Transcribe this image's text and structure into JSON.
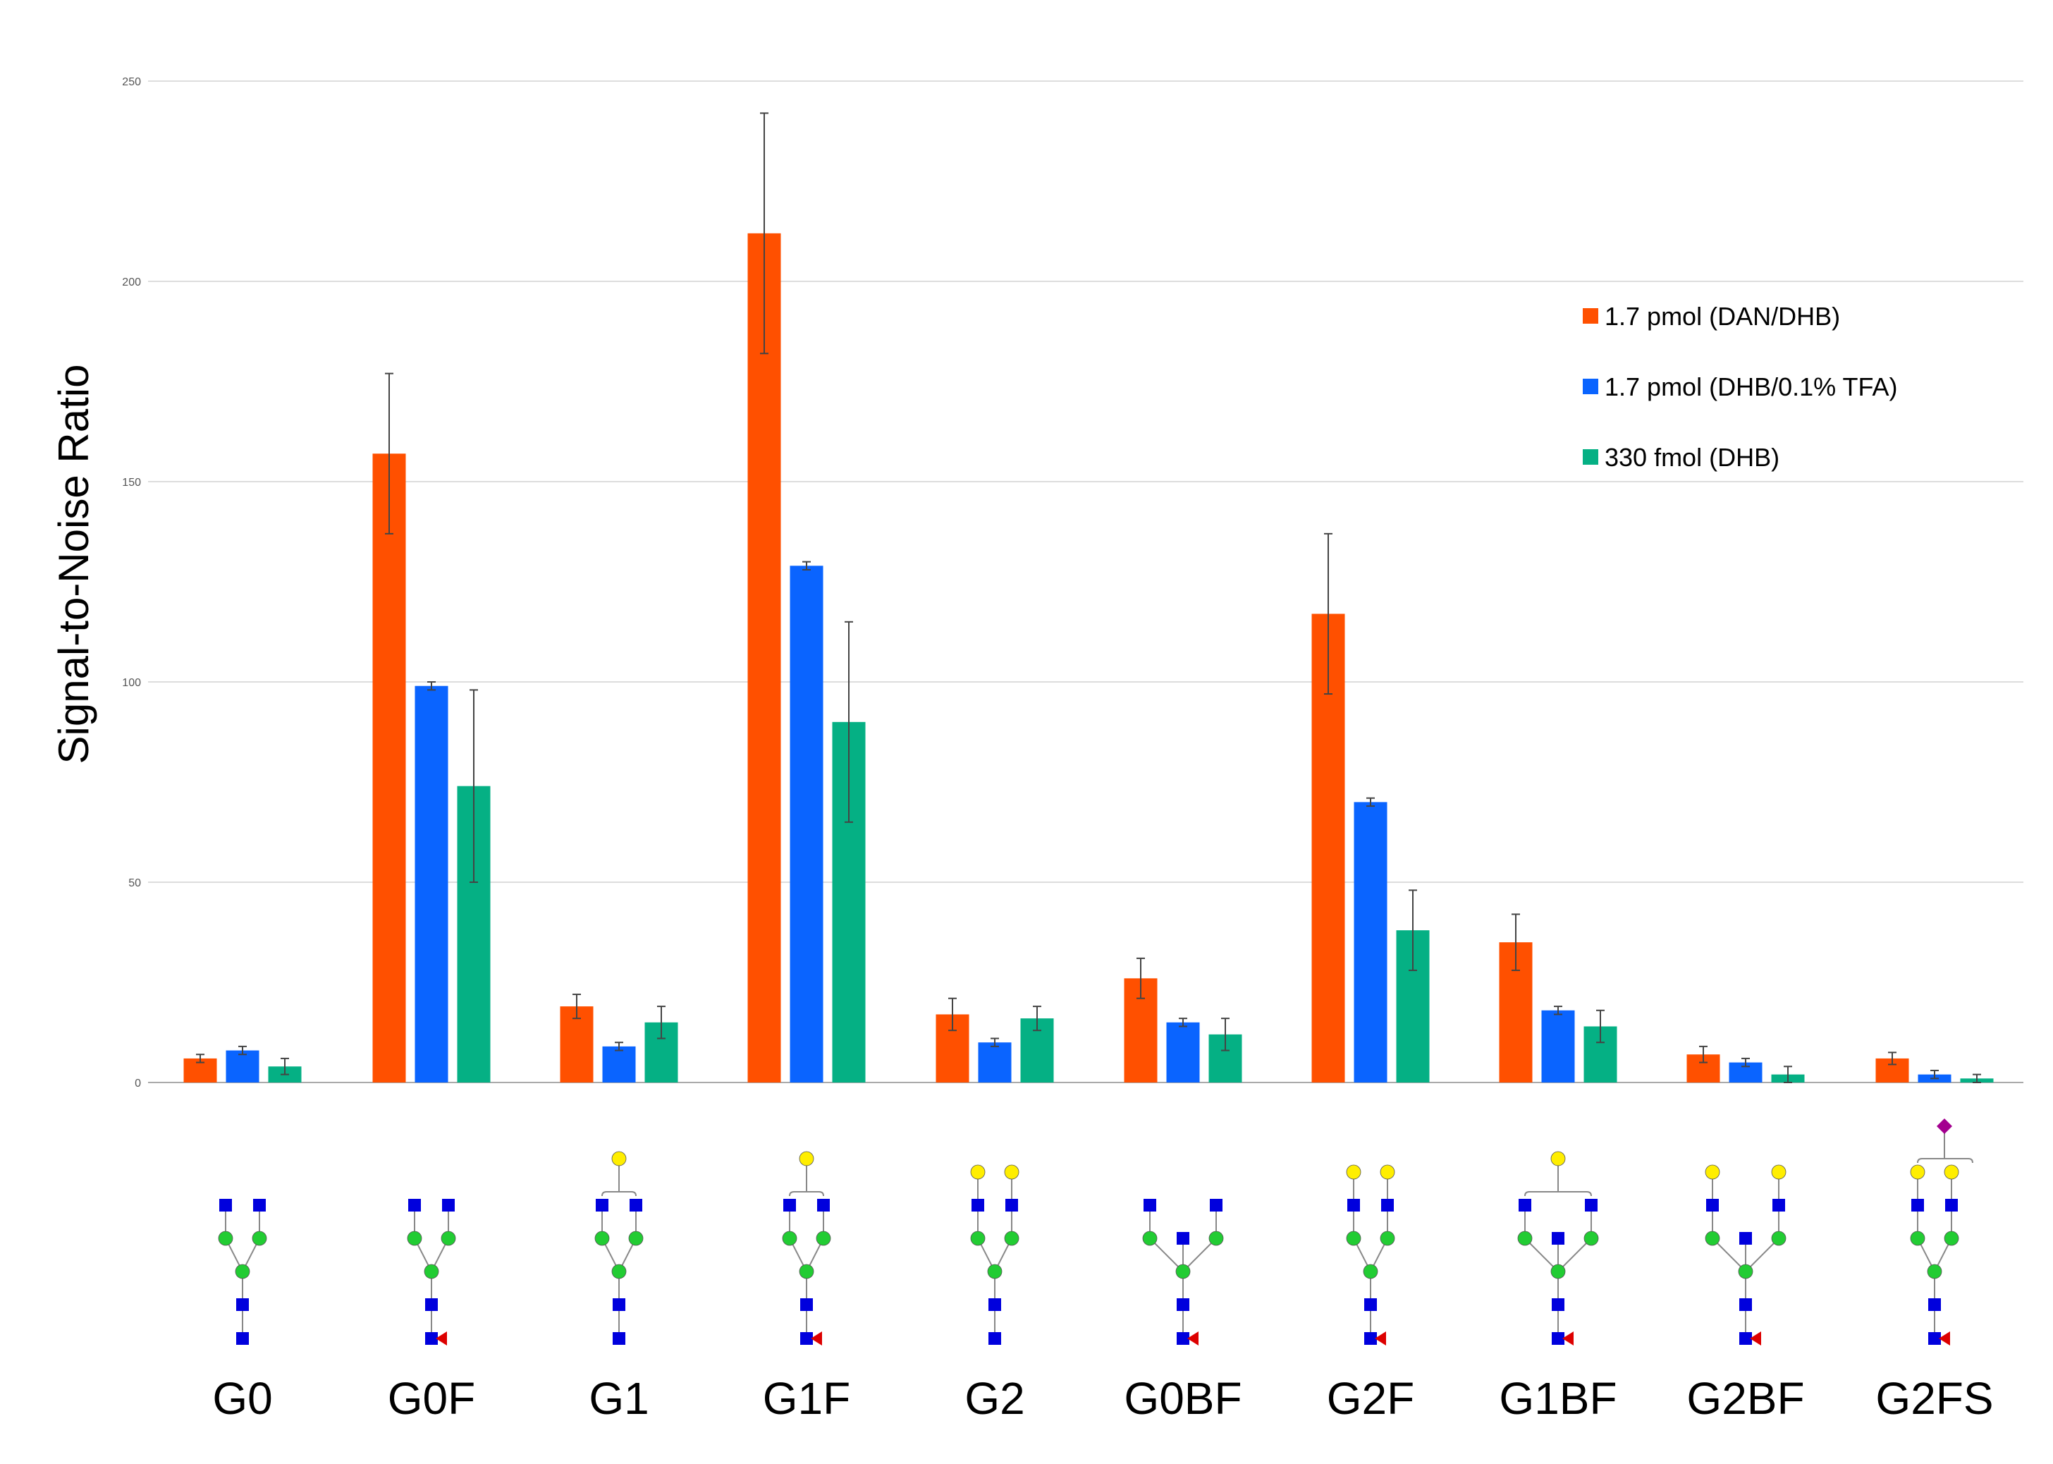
{
  "chart_data": {
    "type": "bar",
    "title": "",
    "xlabel": "",
    "ylabel": "Signal-to-Noise Ratio",
    "ylim": [
      0,
      250
    ],
    "yticks": [
      0,
      50,
      100,
      150,
      200,
      250
    ],
    "grid": true,
    "legend_position": "top-right",
    "categories": [
      "G0",
      "G0F",
      "G1",
      "G1F",
      "G2",
      "G0BF",
      "G2F",
      "G1BF",
      "G2BF",
      "G2FS"
    ],
    "series": [
      {
        "name": "1.7  pmol (DAN/DHB)",
        "color": "#ff5000",
        "values": [
          6,
          157,
          19,
          212,
          17,
          26,
          117,
          35,
          7,
          6
        ],
        "errors": [
          1,
          20,
          3,
          30,
          4,
          5,
          20,
          7,
          2,
          1.5
        ]
      },
      {
        "name": "1.7  pmol (DHB/0.1% TFA)",
        "color": "#0a64ff",
        "values": [
          8,
          99,
          9,
          129,
          10,
          15,
          70,
          18,
          5,
          2
        ],
        "errors": [
          1,
          1,
          1,
          1,
          1,
          1,
          1,
          1,
          1,
          1
        ]
      },
      {
        "name": "330 fmol  (DHB)",
        "color": "#05b084",
        "values": [
          4,
          74,
          15,
          90,
          16,
          12,
          38,
          14,
          2,
          1
        ],
        "errors": [
          2,
          24,
          4,
          25,
          3,
          4,
          10,
          4,
          2,
          1
        ]
      }
    ],
    "glycan_structures": [
      "G0",
      "G0F",
      "G1",
      "G1F",
      "G2",
      "G0BF",
      "G2F",
      "G1BF",
      "G2BF",
      "G2FS"
    ]
  },
  "colors": {
    "gridline": "#dddddd",
    "axis": "#aaaaaa",
    "errorbar": "#444444",
    "glcnac": "#0000dd",
    "mannose": "#22cc33",
    "galactose": "#ffee00",
    "fucose": "#dd0000",
    "sialic_acid": "#a3008f",
    "linkage": "#888888"
  },
  "icons": {
    "glcnac": "blue-square-icon",
    "mannose": "green-circle-icon",
    "galactose": "yellow-circle-icon",
    "fucose": "red-triangle-icon",
    "sialic_acid": "purple-diamond-icon"
  }
}
